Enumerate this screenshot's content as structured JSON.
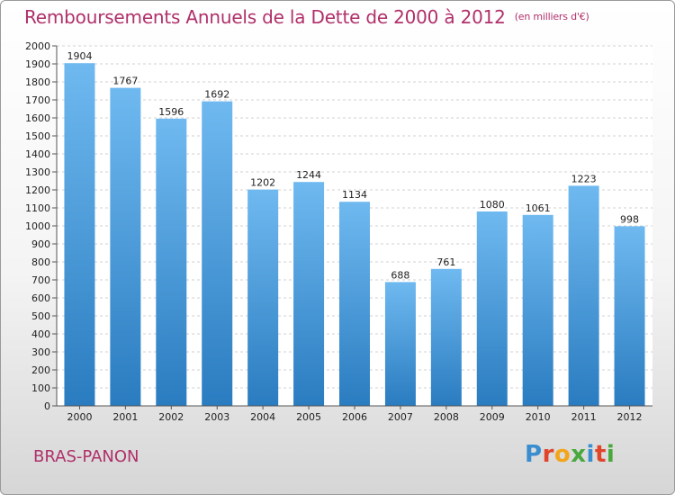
{
  "title": "Remboursements Annuels de la Dette de 2000 à 2012",
  "unit": "(en milliers d'€)",
  "city": "BRAS-PANON",
  "brand": "Proxiti",
  "brand_colors": [
    "#3a8ed0",
    "#e0452b",
    "#f2a51a",
    "#49a83c",
    "#3a8ed0",
    "#e0452b",
    "#49a83c"
  ],
  "colors": {
    "bar_light": "#6bb6ee",
    "bar_dark": "#2d7fc3",
    "title": "#b0306a"
  },
  "chart_data": {
    "type": "bar",
    "title": "Remboursements Annuels de la Dette de 2000 à 2012",
    "xlabel": "",
    "ylabel": "",
    "categories": [
      "2000",
      "2001",
      "2002",
      "2003",
      "2004",
      "2005",
      "2006",
      "2007",
      "2008",
      "2009",
      "2010",
      "2011",
      "2012"
    ],
    "values": [
      1904,
      1767,
      1596,
      1692,
      1202,
      1244,
      1134,
      688,
      761,
      1080,
      1061,
      1223,
      998
    ],
    "ylim": [
      0,
      2000
    ],
    "yticks": [
      0,
      100,
      200,
      300,
      400,
      500,
      600,
      700,
      800,
      900,
      1000,
      1100,
      1200,
      1300,
      1400,
      1500,
      1600,
      1700,
      1800,
      1900,
      2000
    ],
    "grid": true
  }
}
